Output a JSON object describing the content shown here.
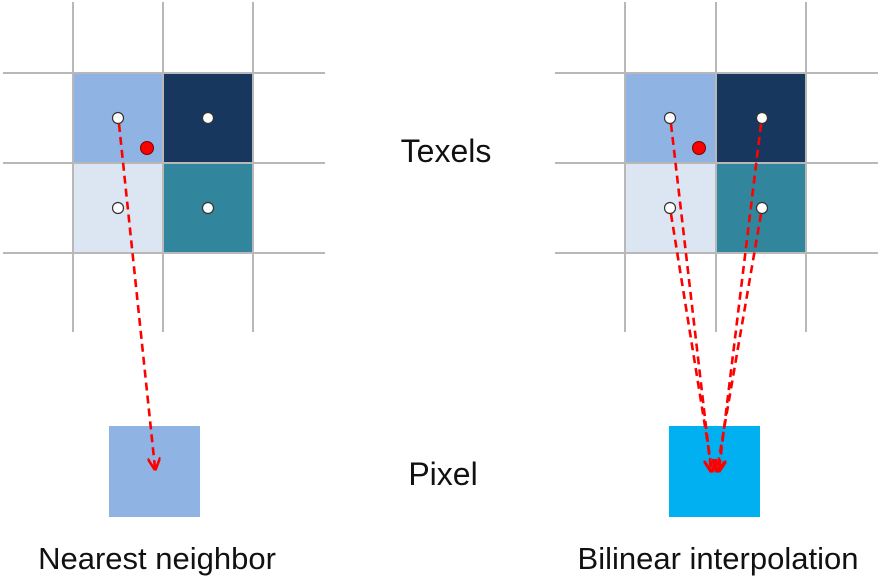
{
  "labels": {
    "texels": "Texels",
    "pixel": "Pixel",
    "nearest": "Nearest neighbor",
    "bilinear": "Bilinear interpolation"
  },
  "colors": {
    "grid_line": "#b8b8b8",
    "texel_top_left": "#8fb4e3",
    "texel_top_right": "#17375e",
    "texel_bottom_left": "#dce6f2",
    "texel_bottom_right": "#31859c",
    "pixel_nearest": "#8fb4e3",
    "pixel_bilinear": "#00b0f0",
    "sample_point": "#ff0000",
    "arrow": "#ff0000"
  }
}
